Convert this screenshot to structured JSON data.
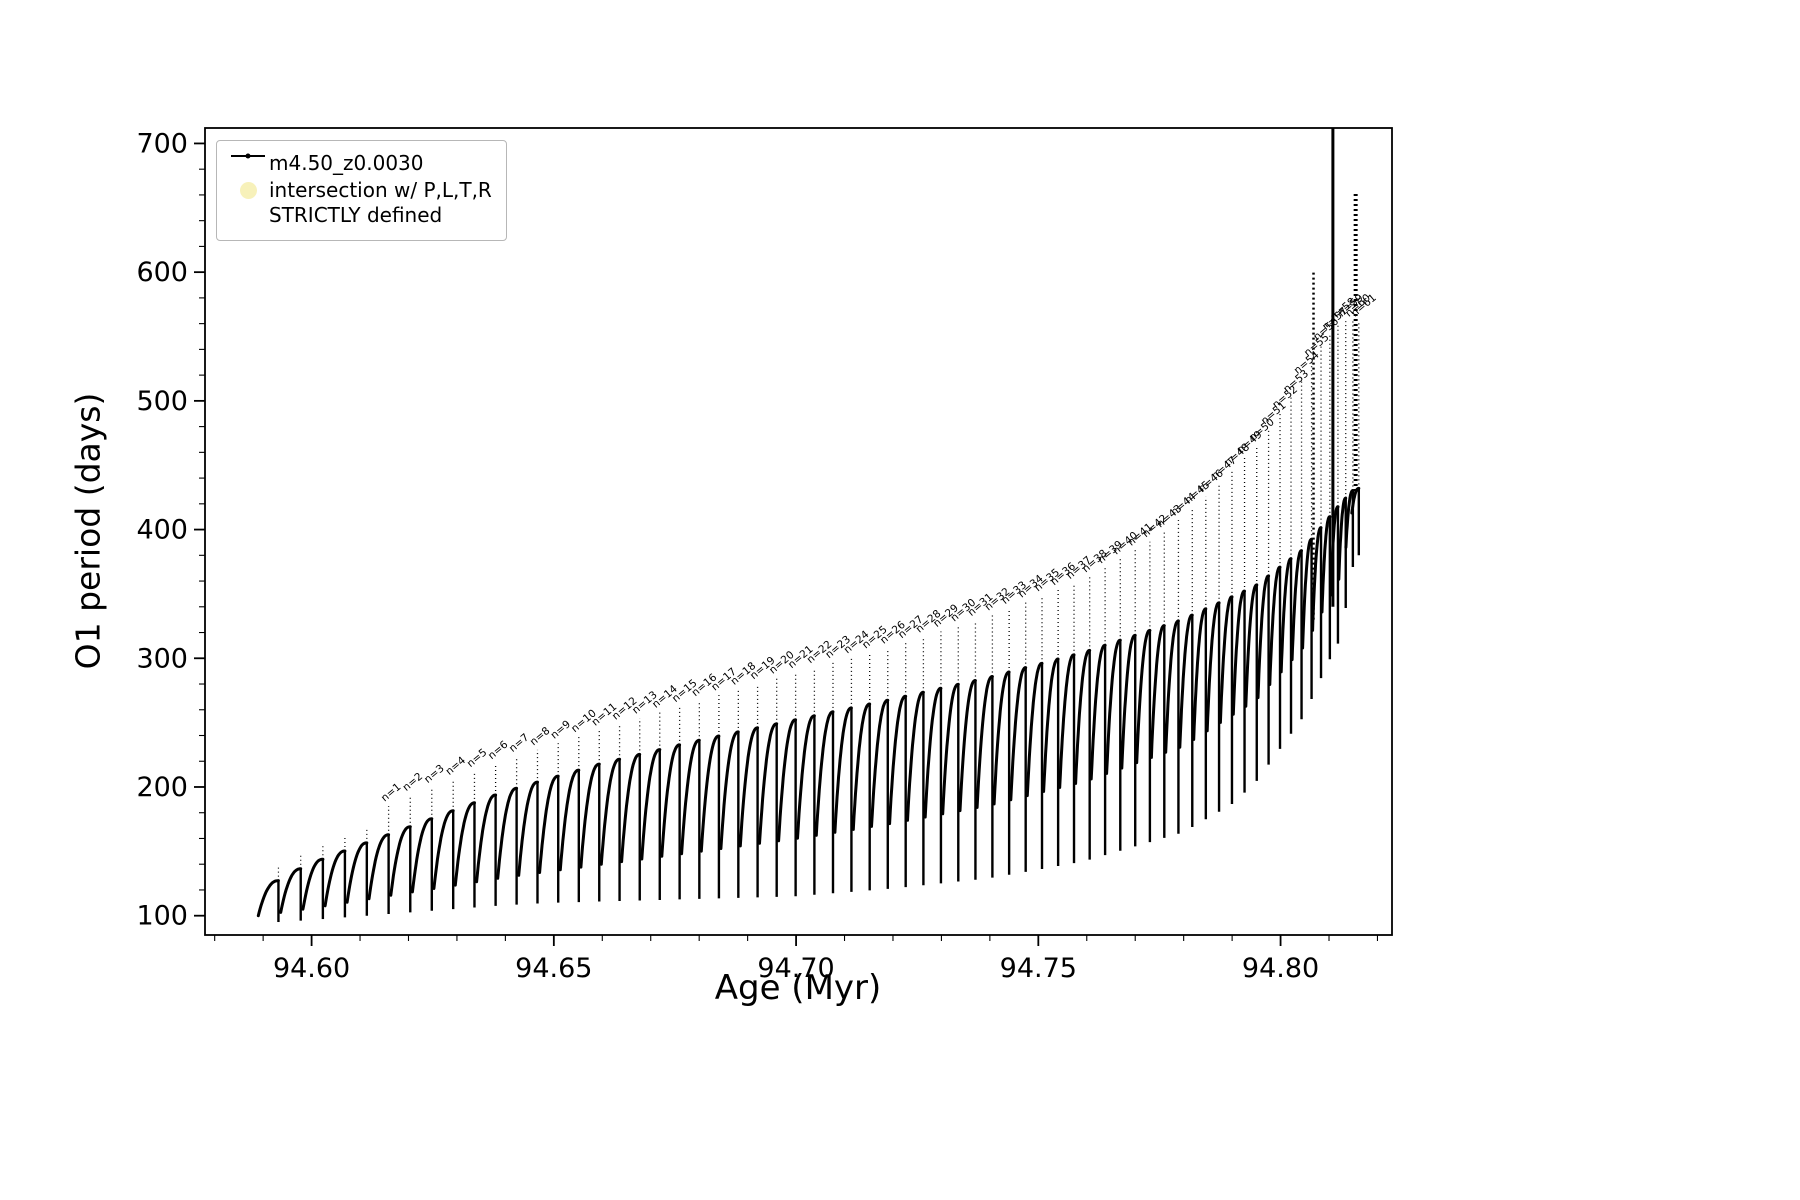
{
  "figure": {
    "xlabel": "Age (Myr)",
    "ylabel": "O1 period (days)",
    "legend": {
      "entries": [
        {
          "label": "m4.50_z0.0030",
          "marker": "line-dot-icon",
          "color": "#000000"
        },
        {
          "label_line1": "intersection w/ P,L,T,R",
          "label_line2": "STRICTLY defined",
          "marker": "pale-dot-icon",
          "color": "#f6eeae"
        }
      ]
    }
  },
  "chart_data": {
    "type": "line",
    "series": [
      {
        "name": "m4.50_z0.0030",
        "color": "#000000"
      }
    ],
    "title": "",
    "xlabel": "Age (Myr)",
    "ylabel": "O1 period (days)",
    "xlim": [
      94.578,
      94.823
    ],
    "ylim": [
      85,
      712
    ],
    "xticks": [
      94.6,
      94.65,
      94.7,
      94.75,
      94.8
    ],
    "xtick_labels": [
      "94.60",
      "94.65",
      "94.70",
      "94.75",
      "94.80"
    ],
    "yticks": [
      100,
      200,
      300,
      400,
      500,
      600,
      700
    ],
    "ytick_labels": [
      "100",
      "200",
      "300",
      "400",
      "500",
      "600",
      "700"
    ],
    "minor_x_step": 0.01,
    "minor_y_step": 20,
    "grid": false,
    "legend_position": "upper left",
    "annotation_prefix": "n=",
    "annotation_labels": [
      "n=1",
      "n=2",
      "n=3",
      "n=4",
      "n=5",
      "n=6",
      "n=7",
      "n=8",
      "n=9",
      "n=10",
      "n=11",
      "n=12",
      "n=13",
      "n=14",
      "n=15",
      "n=16",
      "n=17",
      "n=18",
      "n=19",
      "n=20",
      "n=21",
      "n=22",
      "n=23",
      "n=24",
      "n=25",
      "n=26",
      "n=27",
      "n=28",
      "n=29",
      "n=30",
      "n=31",
      "n=32",
      "n=33",
      "n=34",
      "n=35",
      "n=36",
      "n=37",
      "n=38",
      "n=39",
      "n=40",
      "n=41",
      "n=42",
      "n=43",
      "n=44",
      "n=45",
      "n=46",
      "n=47",
      "n=48",
      "n=49",
      "n=50",
      "n=51",
      "n=52",
      "n=53",
      "n=54",
      "n=55",
      "n=56",
      "n=57",
      "n=58",
      "n=59",
      "n=60",
      "n=61"
    ],
    "teeth": {
      "count": 66,
      "age_start": 94.589,
      "age_end": 94.8155,
      "spacing_power": 1.35,
      "min_width": 0.0016,
      "label_start_tooth": 5
    },
    "lower_envelope": [
      [
        94.589,
        100
      ],
      [
        94.6,
        106
      ],
      [
        94.62,
        118
      ],
      [
        94.64,
        130
      ],
      [
        94.66,
        140
      ],
      [
        94.68,
        150
      ],
      [
        94.7,
        160
      ],
      [
        94.72,
        172
      ],
      [
        94.74,
        186
      ],
      [
        94.76,
        205
      ],
      [
        94.78,
        232
      ],
      [
        94.795,
        268
      ],
      [
        94.805,
        310
      ],
      [
        94.8125,
        365
      ],
      [
        94.8155,
        430
      ]
    ],
    "upper_envelope": [
      [
        94.589,
        118
      ],
      [
        94.6,
        140
      ],
      [
        94.62,
        168
      ],
      [
        94.64,
        196
      ],
      [
        94.66,
        218
      ],
      [
        94.68,
        236
      ],
      [
        94.7,
        252
      ],
      [
        94.72,
        268
      ],
      [
        94.74,
        285
      ],
      [
        94.76,
        305
      ],
      [
        94.78,
        330
      ],
      [
        94.795,
        356
      ],
      [
        94.805,
        385
      ],
      [
        94.8125,
        420
      ],
      [
        94.8155,
        432
      ]
    ],
    "label_envelope": [
      [
        94.605,
        168
      ],
      [
        94.62,
        196
      ],
      [
        94.64,
        224
      ],
      [
        94.66,
        248
      ],
      [
        94.68,
        270
      ],
      [
        94.7,
        292
      ],
      [
        94.72,
        312
      ],
      [
        94.74,
        336
      ],
      [
        94.76,
        365
      ],
      [
        94.775,
        398
      ],
      [
        94.785,
        430
      ],
      [
        94.795,
        468
      ],
      [
        94.802,
        505
      ],
      [
        94.808,
        545
      ],
      [
        94.8125,
        565
      ]
    ],
    "dip_depth": [
      [
        94.589,
        6
      ],
      [
        94.65,
        25
      ],
      [
        94.7,
        45
      ],
      [
        94.75,
        60
      ],
      [
        94.79,
        70
      ],
      [
        94.81,
        50
      ]
    ],
    "tall_spikes": [
      {
        "age": 94.8068,
        "y0": 330,
        "y1": 600,
        "style": "dotted",
        "width": 2.5
      },
      {
        "age": 94.8108,
        "y0": 340,
        "y1": 712,
        "style": "solid",
        "width": 3
      },
      {
        "age": 94.8155,
        "y0": 430,
        "y1": 662,
        "style": "dotted",
        "width": 4
      }
    ]
  }
}
